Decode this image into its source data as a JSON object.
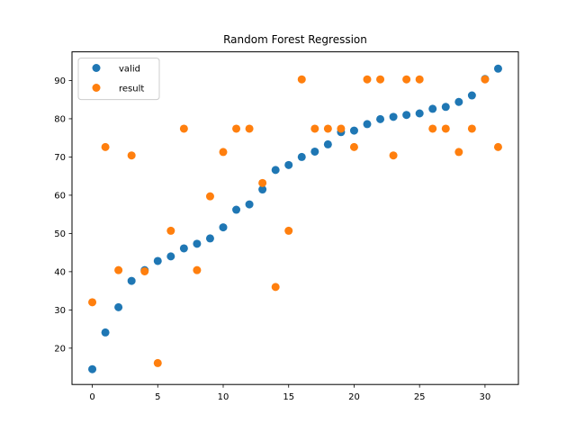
{
  "chart_data": {
    "type": "scatter",
    "title": "Random Forest Regression",
    "xlabel": "",
    "ylabel": "",
    "xlim": [
      -1.55,
      32.55
    ],
    "ylim": [
      10.5,
      97.5
    ],
    "x_ticks": [
      0,
      5,
      10,
      15,
      20,
      25,
      30
    ],
    "y_ticks": [
      20,
      30,
      40,
      50,
      60,
      70,
      80,
      90
    ],
    "grid": false,
    "legend": {
      "placement": "top-left",
      "entries": [
        "valid",
        "result"
      ]
    },
    "series": [
      {
        "name": "valid",
        "color": "#1f77b4",
        "x": [
          0,
          1,
          2,
          3,
          4,
          5,
          6,
          7,
          8,
          9,
          10,
          11,
          12,
          13,
          14,
          15,
          16,
          17,
          18,
          19,
          20,
          21,
          22,
          23,
          24,
          25,
          26,
          27,
          28,
          29,
          30,
          31
        ],
        "y": [
          14.5,
          24.1,
          30.7,
          37.6,
          40.4,
          42.8,
          44.0,
          46.1,
          47.3,
          48.7,
          51.6,
          56.2,
          57.6,
          61.5,
          66.6,
          67.9,
          70.0,
          71.4,
          73.3,
          76.5,
          76.9,
          78.6,
          79.9,
          80.5,
          81.0,
          81.4,
          82.6,
          83.1,
          84.4,
          86.1,
          90.4,
          93.1
        ]
      },
      {
        "name": "result",
        "color": "#ff7f0e",
        "x": [
          0,
          1,
          2,
          3,
          4,
          5,
          6,
          7,
          8,
          9,
          10,
          11,
          12,
          13,
          14,
          15,
          16,
          17,
          18,
          19,
          20,
          21,
          22,
          23,
          24,
          25,
          26,
          27,
          28,
          29,
          30,
          31
        ],
        "y": [
          32.0,
          72.6,
          40.4,
          70.4,
          40.1,
          16.1,
          50.7,
          77.4,
          40.4,
          59.7,
          71.3,
          77.4,
          77.4,
          63.2,
          36.0,
          50.7,
          90.3,
          77.4,
          77.4,
          77.4,
          72.6,
          90.3,
          90.3,
          70.4,
          90.3,
          90.3,
          77.4,
          77.4,
          71.3,
          77.4,
          90.3,
          72.6
        ]
      }
    ]
  }
}
